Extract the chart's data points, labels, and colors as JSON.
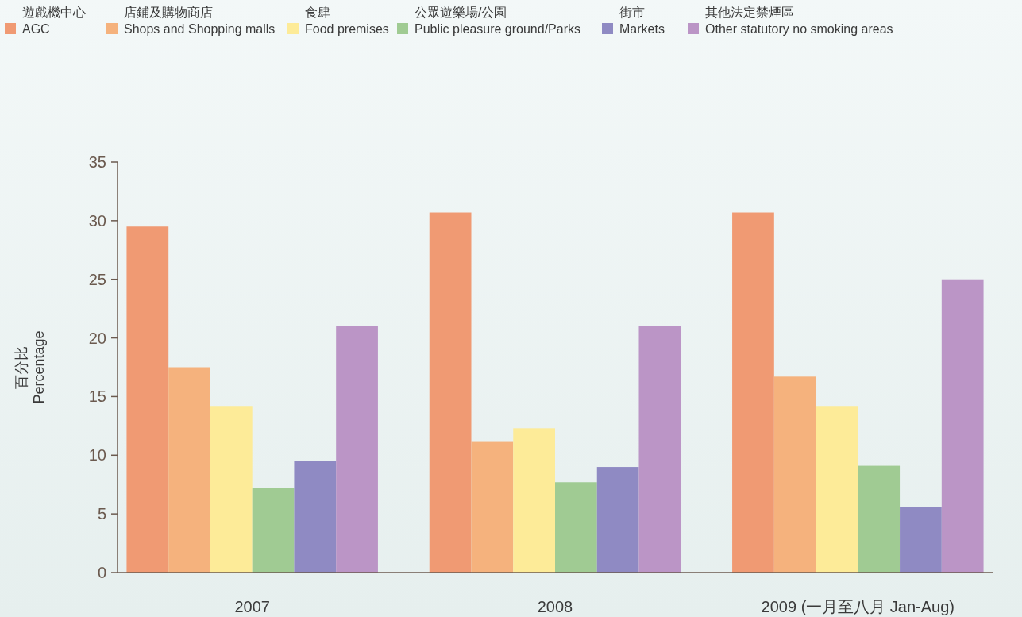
{
  "chart_data": {
    "type": "bar",
    "ylabel": "百分比\nPercentage",
    "categories": [
      "2007",
      "2008",
      "2009 (一月至八月 Jan-Aug)"
    ],
    "series": [
      {
        "name": "遊戲機中心\nAGC",
        "color": "#f09a73",
        "values": [
          29.5,
          30.7,
          30.7
        ]
      },
      {
        "name": "店鋪及購物商店\nShops and Shopping malls",
        "color": "#f5b27d",
        "values": [
          17.5,
          11.2,
          16.7
        ]
      },
      {
        "name": "食肆\nFood premises",
        "color": "#fdeb98",
        "values": [
          14.2,
          12.3,
          14.2
        ]
      },
      {
        "name": "公眾遊樂場/公園\nPublic pleasure ground/Parks",
        "color": "#a0cb93",
        "values": [
          7.2,
          7.7,
          9.1
        ]
      },
      {
        "name": "街市\nMarkets",
        "color": "#8f8ac3",
        "values": [
          9.5,
          9.0,
          5.6
        ]
      },
      {
        "name": "其他法定禁煙區\nOther statutory no smoking areas",
        "color": "#bb95c6",
        "values": [
          21,
          21,
          25
        ]
      }
    ],
    "ylim": [
      0,
      35
    ],
    "yticks": [
      0,
      5,
      10,
      15,
      20,
      25,
      30,
      35
    ],
    "grid": false,
    "legend": "top"
  }
}
